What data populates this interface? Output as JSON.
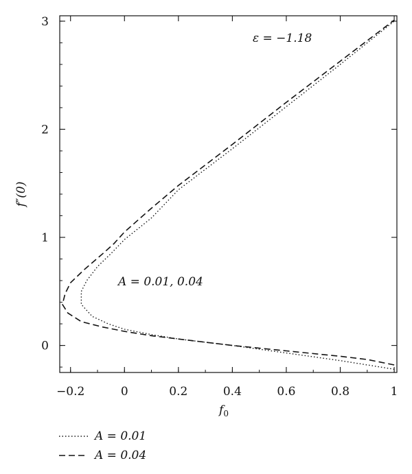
{
  "chart_data": {
    "type": "line",
    "title": "",
    "xlabel": "f",
    "xlabel_sub": "0",
    "ylabel": "f″(0)",
    "xlim": [
      -0.24,
      1.01
    ],
    "ylim": [
      -0.25,
      3.05
    ],
    "grid": false,
    "legend_position": "bottom-left",
    "x_ticks": [
      -0.2,
      0,
      0.2,
      0.4,
      0.6,
      0.8,
      1
    ],
    "x_tick_labels": [
      "−0.2",
      "0",
      "0.2",
      "0.4",
      "0.6",
      "0.8",
      "1"
    ],
    "y_ticks": [
      0,
      1,
      2,
      3
    ],
    "y_tick_labels": [
      "0",
      "1",
      "2",
      "3"
    ],
    "annotations": [
      {
        "text": "ε = −1.18"
      },
      {
        "text": "A = 0.01, 0.04"
      }
    ],
    "series": [
      {
        "name": "A = 0.01",
        "style": "dotted",
        "color": "#111111",
        "points": [
          [
            1.0,
            -0.22
          ],
          [
            0.9,
            -0.18
          ],
          [
            0.8,
            -0.14
          ],
          [
            0.6,
            -0.07
          ],
          [
            0.4,
            0.0
          ],
          [
            0.2,
            0.06
          ],
          [
            0.1,
            0.1
          ],
          [
            0.0,
            0.15
          ],
          [
            -0.06,
            0.2
          ],
          [
            -0.12,
            0.27
          ],
          [
            -0.16,
            0.38
          ],
          [
            -0.16,
            0.5
          ],
          [
            -0.14,
            0.6
          ],
          [
            -0.1,
            0.73
          ],
          [
            -0.05,
            0.85
          ],
          [
            0.0,
            0.98
          ],
          [
            0.1,
            1.18
          ],
          [
            0.2,
            1.44
          ],
          [
            0.4,
            1.82
          ],
          [
            0.6,
            2.21
          ],
          [
            0.8,
            2.6
          ],
          [
            1.0,
            3.0
          ]
        ]
      },
      {
        "name": "A = 0.04",
        "style": "dashed",
        "color": "#111111",
        "points": [
          [
            1.0,
            -0.18
          ],
          [
            0.9,
            -0.13
          ],
          [
            0.8,
            -0.1
          ],
          [
            0.6,
            -0.05
          ],
          [
            0.4,
            0.0
          ],
          [
            0.2,
            0.06
          ],
          [
            0.1,
            0.09
          ],
          [
            0.0,
            0.13
          ],
          [
            -0.08,
            0.17
          ],
          [
            -0.16,
            0.22
          ],
          [
            -0.21,
            0.3
          ],
          [
            -0.23,
            0.38
          ],
          [
            -0.22,
            0.48
          ],
          [
            -0.2,
            0.58
          ],
          [
            -0.15,
            0.7
          ],
          [
            -0.08,
            0.85
          ],
          [
            -0.04,
            0.94
          ],
          [
            0.0,
            1.05
          ],
          [
            0.1,
            1.27
          ],
          [
            0.2,
            1.48
          ],
          [
            0.4,
            1.86
          ],
          [
            0.6,
            2.25
          ],
          [
            0.8,
            2.63
          ],
          [
            1.0,
            3.01
          ]
        ]
      }
    ]
  }
}
